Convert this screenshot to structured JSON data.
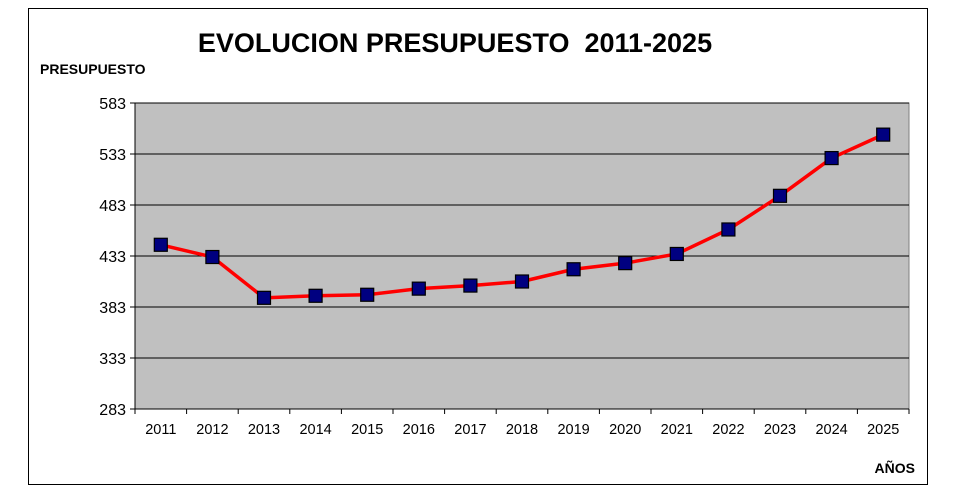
{
  "chart_data": {
    "type": "line",
    "title": "EVOLUCION PRESUPUESTO  2011-2025",
    "ylabel": "PRESUPUESTO",
    "xlabel": "AÑOS",
    "categories": [
      "2011",
      "2012",
      "2013",
      "2014",
      "2015",
      "2016",
      "2017",
      "2018",
      "2019",
      "2020",
      "2021",
      "2022",
      "2023",
      "2024",
      "2025"
    ],
    "series": [
      {
        "values": [
          444,
          432,
          392,
          394,
          395,
          401,
          404,
          408,
          420,
          426,
          435,
          459,
          492,
          529,
          552
        ]
      }
    ],
    "ylim": [
      283,
      583
    ],
    "yticks": [
      583,
      533,
      483,
      433,
      383,
      333,
      283
    ],
    "grid": true,
    "legend": "none",
    "colors": {
      "plot_background": "#c0c0c0",
      "line": "#ff0000",
      "marker_fill": "#000080",
      "gridline": "#000000"
    }
  }
}
